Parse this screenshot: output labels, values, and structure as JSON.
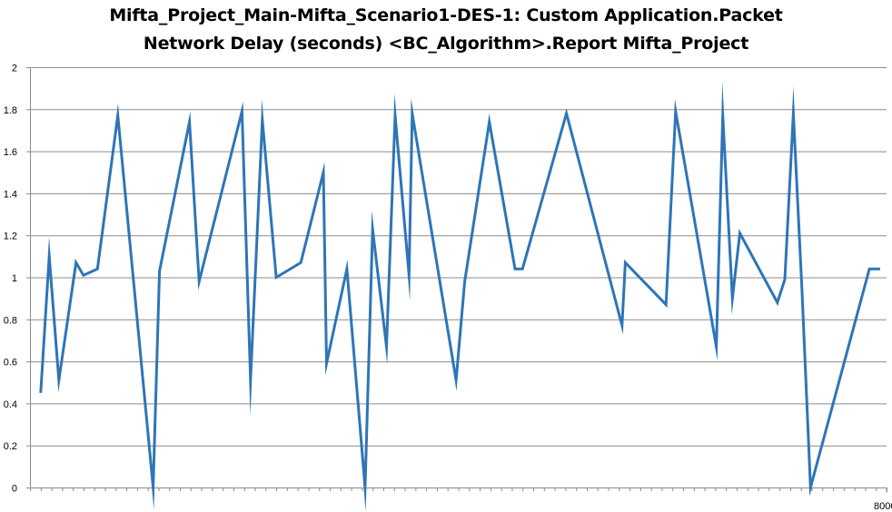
{
  "chart_data": {
    "type": "line",
    "title_lines": [
      "Mifta_Project_Main-Mifta_Scenario1-DES-1: Custom Application.Packet",
      "Network Delay (seconds) <BC_Algorithm>.Report Mifta_Project"
    ],
    "xlabel": "",
    "ylabel": "",
    "xlim": [
      0,
      8000
    ],
    "ylim": [
      0,
      2
    ],
    "yticks": [
      "0",
      "0.2",
      "0.4",
      "0.6",
      "0.8",
      "1",
      "1.2",
      "1.4",
      "1.6",
      "1.8",
      "2"
    ],
    "xticks": [
      {
        "x": 8000,
        "label": "8000"
      }
    ],
    "grid": true,
    "legend": "none",
    "line_color": "#2E75B6",
    "series": [
      {
        "x": [
          100,
          180,
          270,
          430,
          500,
          630,
          820,
          1150,
          1210,
          1490,
          1580,
          1980,
          2060,
          2170,
          2300,
          2530,
          2740,
          2770,
          2960,
          3130,
          3200,
          3330,
          3410,
          3540,
          3570,
          3980,
          4060,
          4290,
          4530,
          4600,
          5010,
          5530,
          5560,
          5940,
          6030,
          6410,
          6470,
          6560,
          6630,
          6980,
          7050,
          7130,
          7210,
          7290,
          7840,
          7940
        ],
        "y": [
          0.45,
          1.1,
          0.51,
          1.07,
          1.01,
          1.04,
          1.77,
          0.0,
          1.03,
          1.74,
          0.98,
          1.79,
          0.51,
          1.75,
          1.0,
          1.07,
          1.5,
          0.59,
          1.04,
          0.0,
          1.23,
          0.67,
          1.77,
          1.01,
          1.78,
          0.51,
          0.98,
          1.74,
          1.04,
          1.04,
          1.78,
          0.77,
          1.07,
          0.87,
          1.79,
          0.67,
          1.77,
          0.9,
          1.21,
          0.88,
          0.99,
          1.78,
          0.94,
          0.0,
          1.04,
          1.04
        ]
      }
    ]
  }
}
